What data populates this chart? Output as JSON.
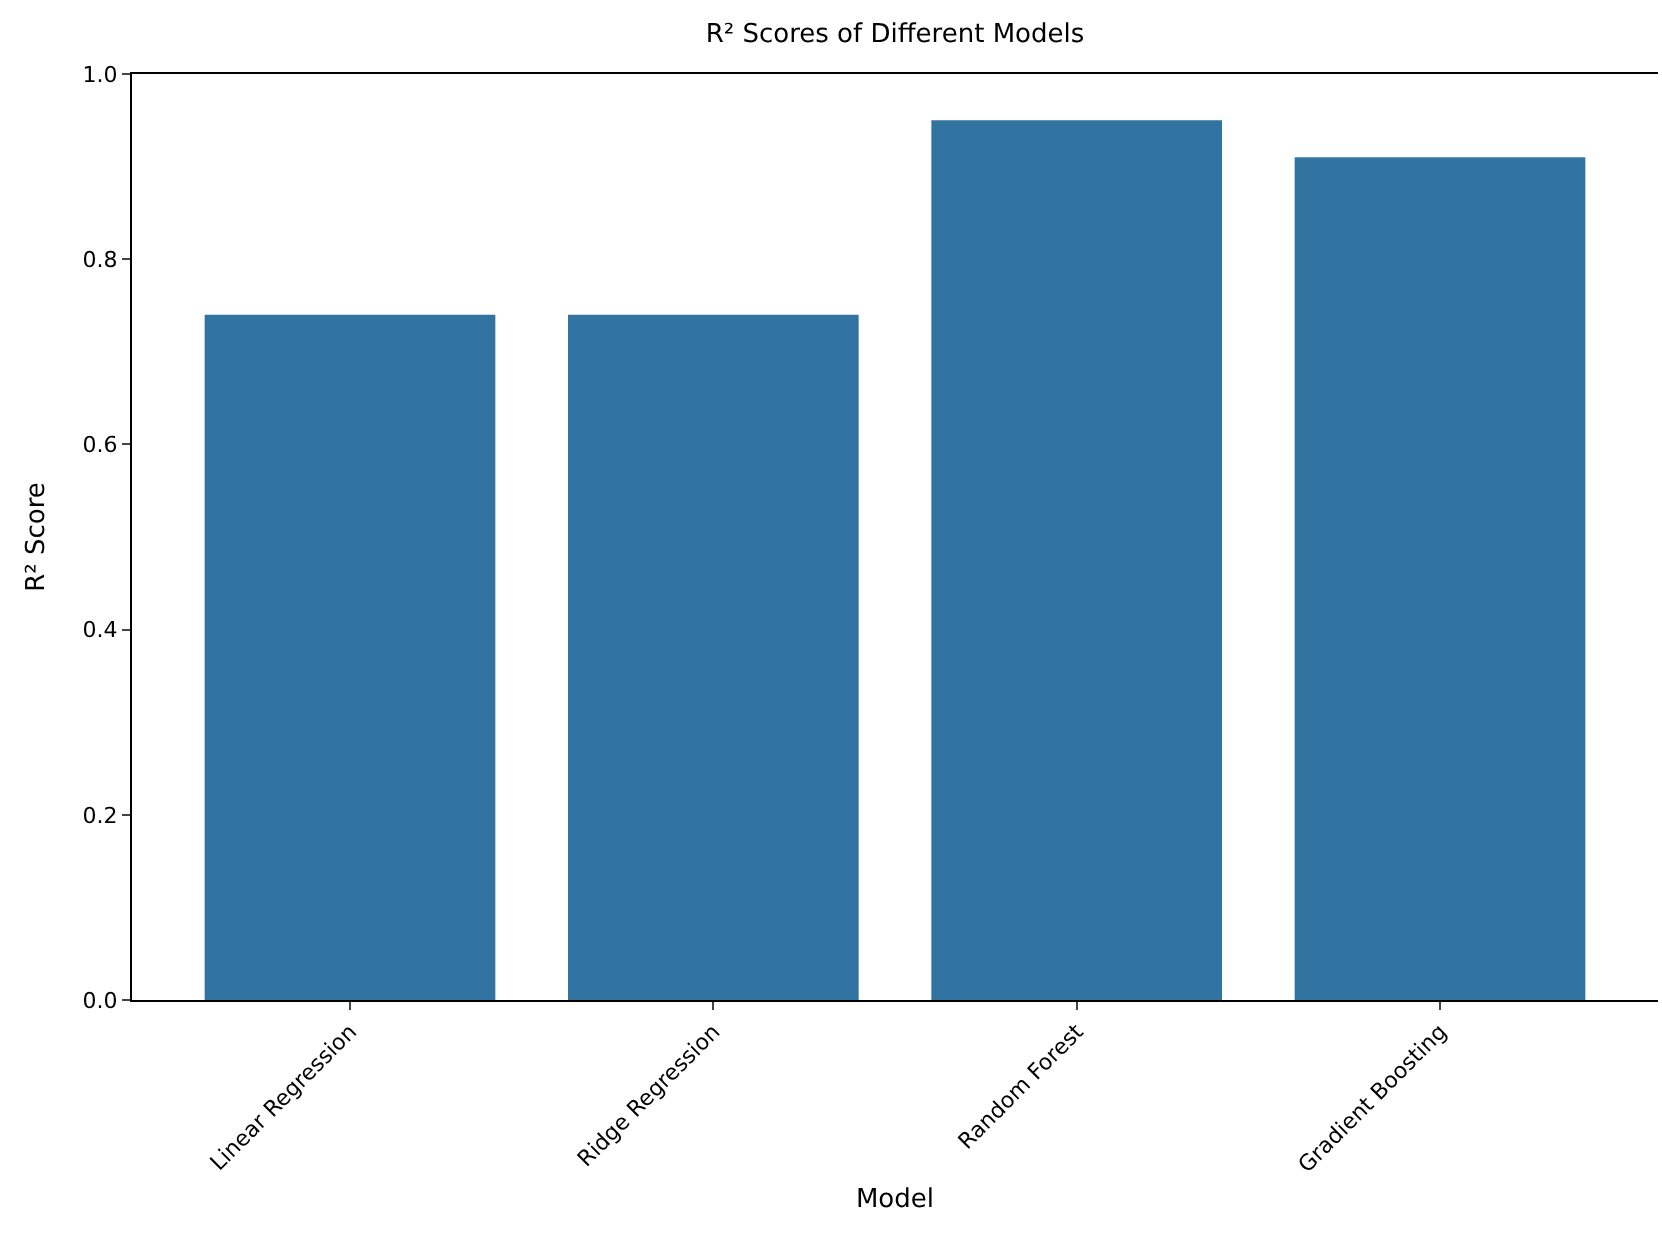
{
  "chart_data": {
    "type": "bar",
    "title": "R² Scores of Different Models",
    "xlabel": "Model",
    "ylabel": "R² Score",
    "categories": [
      "Linear Regression",
      "Ridge Regression",
      "Random Forest",
      "Gradient Boosting"
    ],
    "values": [
      0.74,
      0.74,
      0.95,
      0.91
    ],
    "color": "#3274a1",
    "ylim": [
      0,
      1.0
    ],
    "yticks": [
      {
        "value": 0,
        "label": "0.0"
      },
      {
        "value": 0.2,
        "label": "0.2"
      },
      {
        "value": 0.4,
        "label": "0.4"
      },
      {
        "value": 0.6,
        "label": "0.6"
      },
      {
        "value": 0.8,
        "label": "0.8"
      },
      {
        "value": 1.0,
        "label": "1.0"
      }
    ]
  }
}
